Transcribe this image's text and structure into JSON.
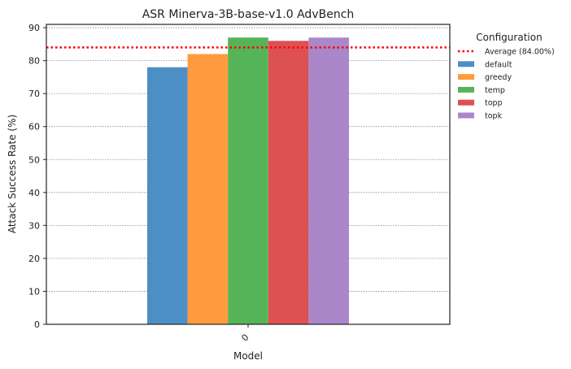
{
  "chart_data": {
    "type": "bar",
    "title": "ASR Minerva-3B-base-v1.0 AdvBench",
    "xlabel": "Model",
    "ylabel": "Attack Success Rate (%)",
    "categories": [
      "0"
    ],
    "ylim": [
      0,
      91
    ],
    "yticks": [
      0,
      10,
      20,
      30,
      40,
      50,
      60,
      70,
      80,
      90
    ],
    "grid": true,
    "legend_title": "Configuration",
    "legend_position": "outside-right",
    "average": {
      "label": "Average (84.00%)",
      "value": 84.0,
      "color": "#ff0000"
    },
    "series": [
      {
        "name": "default",
        "values": [
          78
        ],
        "color": "#4c8fc5"
      },
      {
        "name": "greedy",
        "values": [
          82
        ],
        "color": "#ff9b3e"
      },
      {
        "name": "temp",
        "values": [
          87
        ],
        "color": "#56b458"
      },
      {
        "name": "topp",
        "values": [
          86
        ],
        "color": "#dd5152"
      },
      {
        "name": "topk",
        "values": [
          87
        ],
        "color": "#a987c9"
      }
    ]
  }
}
